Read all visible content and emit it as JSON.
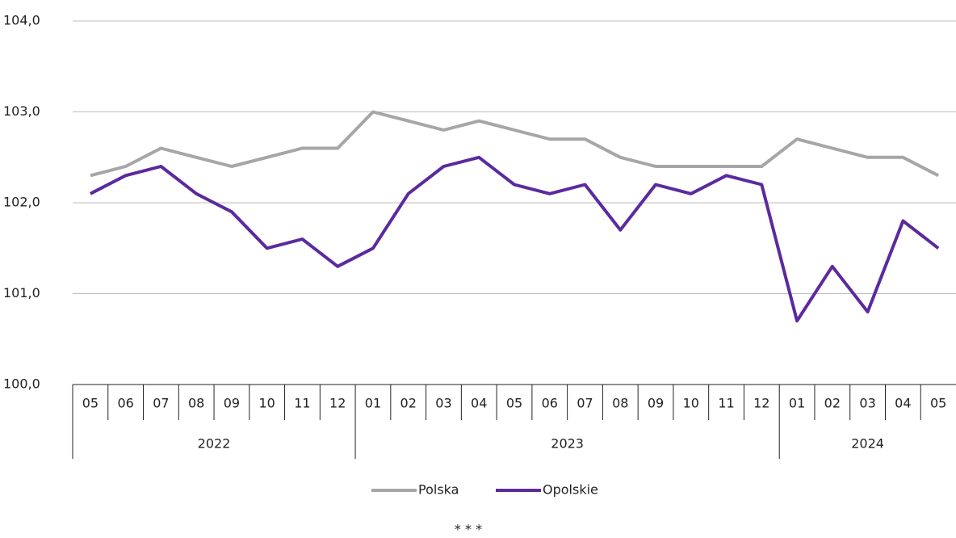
{
  "chart_data": {
    "type": "line",
    "categories": [
      "05",
      "06",
      "07",
      "08",
      "09",
      "10",
      "11",
      "12",
      "01",
      "02",
      "03",
      "04",
      "05",
      "06",
      "07",
      "08",
      "09",
      "10",
      "11",
      "12",
      "01",
      "02",
      "03",
      "04",
      "05"
    ],
    "years": [
      "2022",
      "2022",
      "2022",
      "2022",
      "2022",
      "2022",
      "2022",
      "2022",
      "2023",
      "2023",
      "2023",
      "2023",
      "2023",
      "2023",
      "2023",
      "2023",
      "2023",
      "2023",
      "2023",
      "2023",
      "2024",
      "2024",
      "2024",
      "2024",
      "2024"
    ],
    "series": [
      {
        "name": "Polska",
        "color": "#a6a6a6",
        "values": [
          102.3,
          102.4,
          102.6,
          102.5,
          102.4,
          102.5,
          102.6,
          102.6,
          103.0,
          102.9,
          102.8,
          102.9,
          102.8,
          102.7,
          102.7,
          102.5,
          102.4,
          102.4,
          102.4,
          102.4,
          102.7,
          102.6,
          102.5,
          102.5,
          102.3
        ]
      },
      {
        "name": "Opolskie",
        "color": "#5b2a9e",
        "values": [
          102.1,
          102.3,
          102.4,
          102.1,
          101.9,
          101.5,
          101.6,
          101.3,
          101.5,
          102.1,
          102.4,
          102.5,
          102.2,
          102.1,
          102.2,
          101.7,
          102.2,
          102.1,
          102.3,
          102.2,
          100.7,
          101.3,
          100.8,
          101.8,
          101.5
        ]
      }
    ],
    "ylim": [
      100,
      104
    ],
    "yticks": [
      {
        "value": 100,
        "label": "100,0"
      },
      {
        "value": 101,
        "label": "101,0"
      },
      {
        "value": 102,
        "label": "102,0"
      },
      {
        "value": 103,
        "label": "103,0"
      },
      {
        "value": 104,
        "label": "104,0"
      }
    ],
    "grid": true,
    "legend": "bottom",
    "footnote": "* * *"
  }
}
